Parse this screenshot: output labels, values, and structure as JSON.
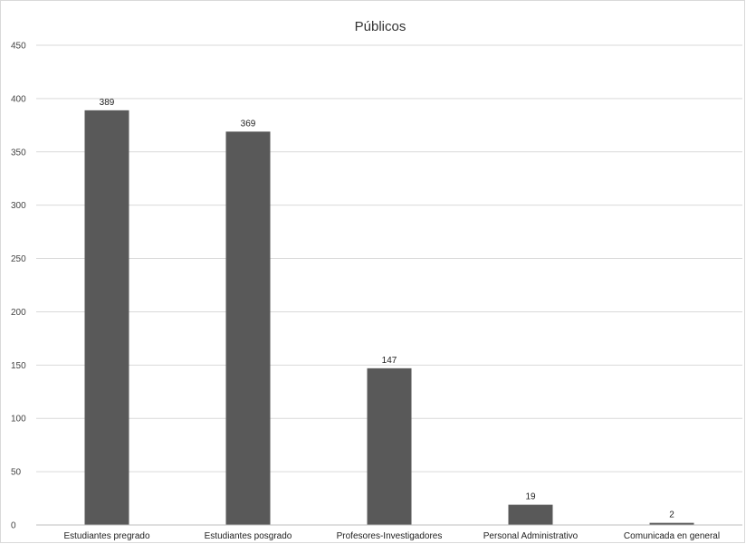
{
  "chart_data": {
    "type": "bar",
    "title": "Públicos",
    "xlabel": "",
    "ylabel": "",
    "categories": [
      "Estudiantes pregrado",
      "Estudiantes posgrado",
      "Profesores-Investigadores",
      "Personal Administrativo",
      "Comunicada en general"
    ],
    "values": [
      389,
      369,
      147,
      19,
      2
    ],
    "data_labels": [
      "389",
      "369",
      "147",
      "19",
      "2"
    ],
    "ylim": [
      0,
      450
    ],
    "yticks": [
      0,
      50,
      100,
      150,
      200,
      250,
      300,
      350,
      400,
      450
    ],
    "grid": true,
    "legend": "none",
    "bar_color": "#595959"
  }
}
